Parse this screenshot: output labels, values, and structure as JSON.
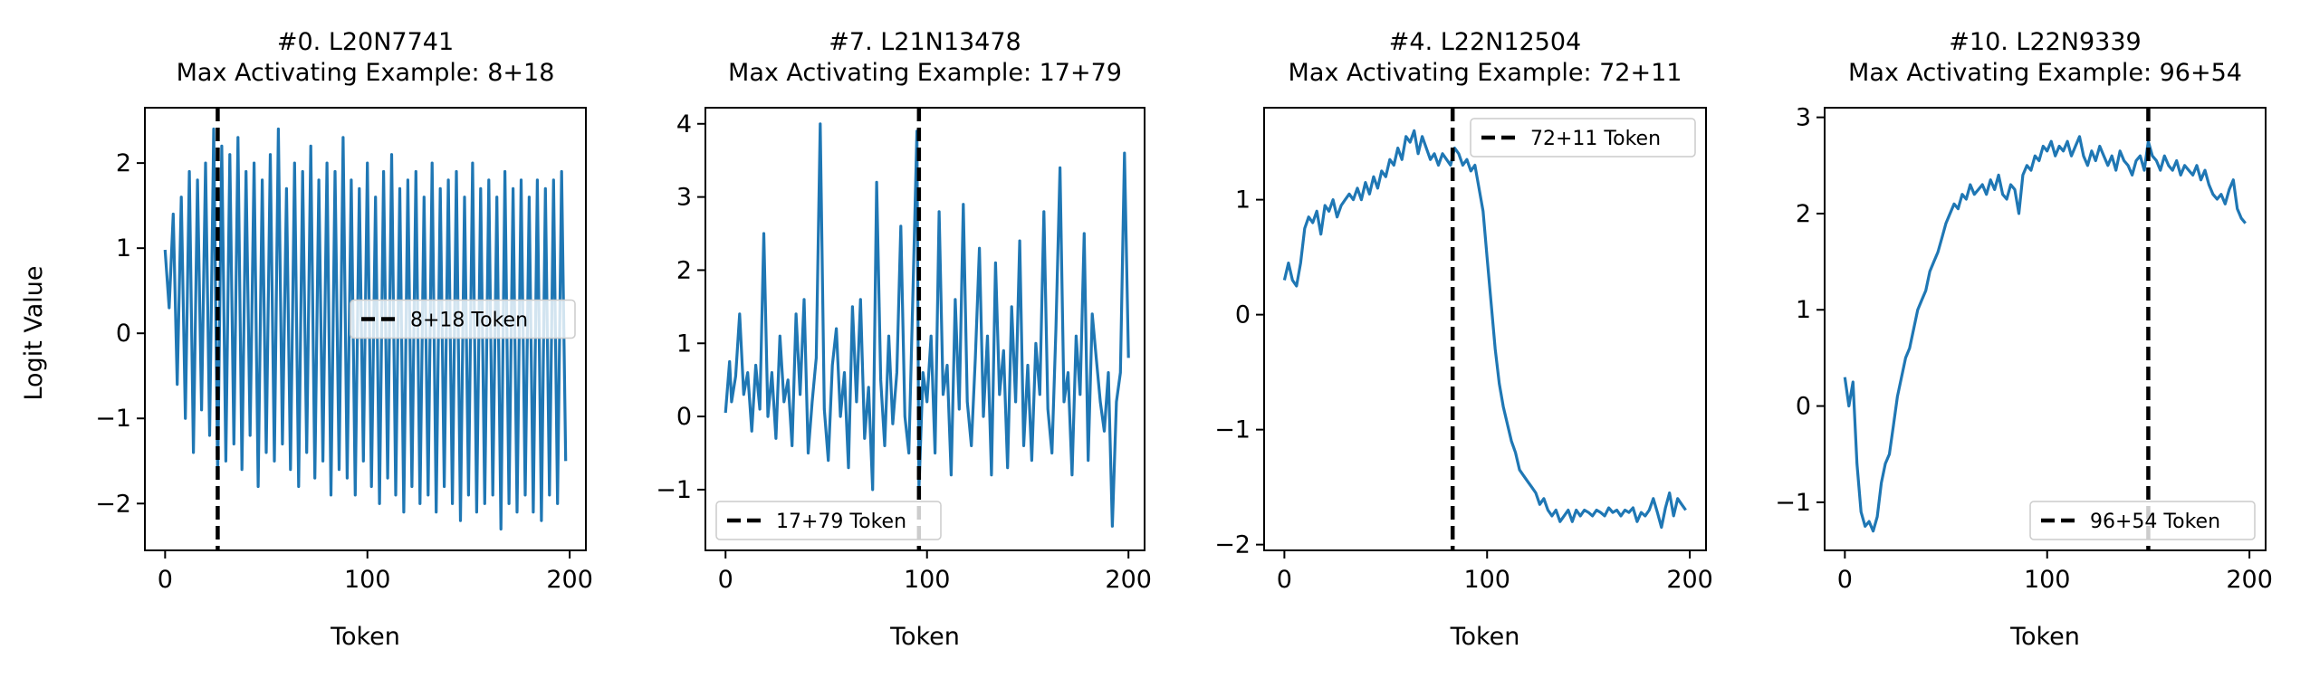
{
  "figure": {
    "ylabel": "Logit Value",
    "xlabel": "Token",
    "line_color": "#1f77b4",
    "marker_color": "#000000"
  },
  "chart_data": [
    {
      "type": "line",
      "title": "#0. L20N7741",
      "subtitle": "Max Activating Example: 8+18",
      "xlabel": "Token",
      "ylabel": "Logit Value",
      "xlim": [
        -10,
        208
      ],
      "ylim": [
        -2.55,
        2.65
      ],
      "xticks": [
        0,
        100,
        200
      ],
      "yticks": [
        -2,
        -1,
        0,
        1,
        2
      ],
      "marker_x": 26,
      "legend_label": "8+18 Token",
      "legend_loc": "center-right",
      "x": [
        0,
        2,
        4,
        6,
        8,
        10,
        12,
        14,
        16,
        18,
        20,
        22,
        24,
        26,
        28,
        30,
        32,
        34,
        36,
        38,
        40,
        42,
        44,
        46,
        48,
        50,
        52,
        54,
        56,
        58,
        60,
        62,
        64,
        66,
        68,
        70,
        72,
        74,
        76,
        78,
        80,
        82,
        84,
        86,
        88,
        90,
        92,
        94,
        96,
        98,
        100,
        102,
        104,
        106,
        108,
        110,
        112,
        114,
        116,
        118,
        120,
        122,
        124,
        126,
        128,
        130,
        132,
        134,
        136,
        138,
        140,
        142,
        144,
        146,
        148,
        150,
        152,
        154,
        156,
        158,
        160,
        162,
        164,
        166,
        168,
        170,
        172,
        174,
        176,
        178,
        180,
        182,
        184,
        186,
        188,
        190,
        192,
        194,
        196,
        198
      ],
      "y": [
        0.98,
        0.3,
        1.4,
        -0.6,
        1.6,
        -1.0,
        1.9,
        -1.4,
        1.8,
        -0.9,
        2.0,
        -1.2,
        2.4,
        -1.7,
        2.2,
        -1.5,
        2.1,
        -1.3,
        2.3,
        -1.6,
        1.9,
        -1.2,
        2.0,
        -1.8,
        1.8,
        -1.4,
        2.1,
        -1.5,
        2.4,
        -1.3,
        1.7,
        -1.6,
        2.0,
        -1.8,
        1.9,
        -1.4,
        2.2,
        -1.7,
        1.8,
        -1.5,
        2.0,
        -1.9,
        1.9,
        -1.6,
        2.3,
        -1.7,
        1.8,
        -1.9,
        1.7,
        -1.5,
        2.0,
        -1.8,
        1.6,
        -2.0,
        1.9,
        -1.7,
        2.1,
        -1.9,
        1.7,
        -2.1,
        1.8,
        -1.8,
        1.9,
        -2.0,
        1.6,
        -1.9,
        2.0,
        -2.1,
        1.7,
        -1.8,
        1.8,
        -2.0,
        1.9,
        -2.2,
        1.6,
        -1.9,
        2.0,
        -2.1,
        1.7,
        -2.0,
        1.8,
        -1.9,
        1.6,
        -2.3,
        1.9,
        -2.0,
        1.7,
        -2.1,
        1.8,
        -1.9,
        1.6,
        -2.1,
        1.8,
        -2.2,
        1.7,
        -1.9,
        1.8,
        -2.0,
        1.9,
        -1.5
      ]
    },
    {
      "type": "line",
      "title": "#7. L21N13478",
      "subtitle": "Max Activating Example: 17+79",
      "xlabel": "Token",
      "ylabel": "",
      "xlim": [
        -10,
        208
      ],
      "ylim": [
        -1.83,
        4.22
      ],
      "xticks": [
        0,
        100,
        200
      ],
      "yticks": [
        -1,
        0,
        1,
        2,
        3,
        4
      ],
      "marker_x": 96,
      "legend_label": "17+79 Token",
      "legend_loc": "bottom-left",
      "x": [
        0,
        2,
        3,
        5,
        7,
        9,
        11,
        13,
        15,
        17,
        19,
        21,
        23,
        25,
        27,
        29,
        31,
        33,
        35,
        37,
        39,
        41,
        43,
        45,
        47,
        49,
        51,
        53,
        55,
        57,
        59,
        61,
        63,
        65,
        67,
        69,
        71,
        73,
        75,
        77,
        79,
        81,
        83,
        85,
        87,
        89,
        91,
        93,
        95,
        96,
        98,
        100,
        102,
        104,
        106,
        108,
        110,
        112,
        114,
        116,
        118,
        120,
        122,
        124,
        126,
        128,
        130,
        132,
        134,
        136,
        138,
        140,
        142,
        144,
        146,
        148,
        150,
        152,
        154,
        156,
        158,
        160,
        162,
        164,
        166,
        168,
        170,
        172,
        174,
        176,
        178,
        180,
        182,
        184,
        186,
        188,
        190,
        192,
        194,
        196,
        198,
        200
      ],
      "y": [
        0.05,
        0.75,
        0.2,
        0.55,
        1.4,
        0.3,
        0.6,
        -0.2,
        0.7,
        0.1,
        2.5,
        0.0,
        0.6,
        -0.3,
        1.1,
        0.2,
        0.5,
        -0.4,
        1.4,
        0.3,
        1.6,
        -0.5,
        0.2,
        0.8,
        4.0,
        0.1,
        -0.6,
        0.7,
        1.2,
        0.0,
        0.6,
        -0.7,
        1.5,
        0.2,
        1.6,
        -0.3,
        0.4,
        -1.0,
        3.2,
        0.5,
        -0.4,
        1.1,
        -0.1,
        0.6,
        2.6,
        0.0,
        -0.5,
        1.7,
        3.9,
        -1.0,
        0.6,
        0.2,
        1.1,
        -0.5,
        2.8,
        0.3,
        0.7,
        -0.8,
        1.6,
        0.1,
        2.9,
        0.2,
        -0.4,
        0.8,
        2.3,
        0.0,
        1.1,
        -0.8,
        2.1,
        0.3,
        0.9,
        -0.7,
        1.5,
        0.2,
        2.4,
        -0.4,
        0.7,
        -0.6,
        1.0,
        0.3,
        2.8,
        0.1,
        -0.5,
        1.2,
        3.4,
        0.2,
        0.6,
        -0.8,
        1.1,
        0.3,
        2.5,
        -0.6,
        1.4,
        0.8,
        0.2,
        -0.2,
        0.6,
        -1.5,
        0.2,
        0.6,
        3.6,
        0.8
      ]
    },
    {
      "type": "line",
      "title": "#4. L22N12504",
      "subtitle": "Max Activating Example: 72+11",
      "xlabel": "Token",
      "ylabel": "",
      "xlim": [
        -10,
        208
      ],
      "ylim": [
        -2.05,
        1.8
      ],
      "xticks": [
        0,
        100,
        200
      ],
      "yticks": [
        -2,
        -1,
        0,
        1
      ],
      "marker_x": 83,
      "legend_label": "72+11 Token",
      "legend_loc": "top-right",
      "x": [
        0,
        2,
        4,
        6,
        8,
        10,
        12,
        14,
        16,
        18,
        20,
        22,
        24,
        26,
        28,
        30,
        32,
        34,
        36,
        38,
        40,
        42,
        44,
        46,
        48,
        50,
        52,
        54,
        56,
        58,
        60,
        62,
        64,
        66,
        68,
        70,
        72,
        74,
        76,
        78,
        80,
        82,
        84,
        86,
        88,
        90,
        92,
        94,
        96,
        98,
        100,
        102,
        104,
        106,
        108,
        110,
        112,
        114,
        116,
        118,
        120,
        122,
        124,
        126,
        128,
        130,
        132,
        134,
        136,
        138,
        140,
        142,
        144,
        146,
        148,
        150,
        152,
        154,
        156,
        158,
        160,
        162,
        164,
        166,
        168,
        170,
        172,
        174,
        176,
        178,
        180,
        182,
        184,
        186,
        188,
        190,
        192,
        194,
        196,
        198
      ],
      "y": [
        0.3,
        0.45,
        0.3,
        0.25,
        0.45,
        0.75,
        0.85,
        0.8,
        0.9,
        0.7,
        0.95,
        0.9,
        1.0,
        0.85,
        0.95,
        1.0,
        1.05,
        1.0,
        1.1,
        1.0,
        1.15,
        1.05,
        1.2,
        1.1,
        1.25,
        1.2,
        1.35,
        1.3,
        1.45,
        1.35,
        1.55,
        1.5,
        1.6,
        1.4,
        1.55,
        1.45,
        1.35,
        1.4,
        1.3,
        1.4,
        1.35,
        1.3,
        1.45,
        1.4,
        1.3,
        1.35,
        1.25,
        1.3,
        1.1,
        0.9,
        0.5,
        0.1,
        -0.3,
        -0.6,
        -0.8,
        -0.95,
        -1.1,
        -1.2,
        -1.35,
        -1.4,
        -1.45,
        -1.5,
        -1.55,
        -1.65,
        -1.6,
        -1.7,
        -1.75,
        -1.7,
        -1.8,
        -1.75,
        -1.7,
        -1.8,
        -1.7,
        -1.75,
        -1.7,
        -1.72,
        -1.75,
        -1.7,
        -1.72,
        -1.75,
        -1.68,
        -1.72,
        -1.7,
        -1.75,
        -1.7,
        -1.72,
        -1.68,
        -1.8,
        -1.72,
        -1.75,
        -1.7,
        -1.6,
        -1.72,
        -1.85,
        -1.68,
        -1.55,
        -1.75,
        -1.6,
        -1.65,
        -1.7
      ]
    },
    {
      "type": "line",
      "title": "#10. L22N9339",
      "subtitle": "Max Activating Example: 96+54",
      "xlabel": "Token",
      "ylabel": "",
      "xlim": [
        -10,
        208
      ],
      "ylim": [
        -1.5,
        3.1
      ],
      "xticks": [
        0,
        100,
        200
      ],
      "yticks": [
        -1,
        0,
        1,
        2,
        3
      ],
      "marker_x": 150,
      "legend_label": "96+54 Token",
      "legend_loc": "bottom-right",
      "x": [
        0,
        2,
        4,
        6,
        8,
        10,
        12,
        14,
        16,
        18,
        20,
        22,
        24,
        26,
        28,
        30,
        32,
        34,
        36,
        38,
        40,
        42,
        44,
        46,
        48,
        50,
        52,
        54,
        56,
        58,
        60,
        62,
        64,
        66,
        68,
        70,
        72,
        74,
        76,
        78,
        80,
        82,
        84,
        86,
        88,
        90,
        92,
        94,
        96,
        98,
        100,
        102,
        104,
        106,
        108,
        110,
        112,
        114,
        116,
        118,
        120,
        122,
        124,
        126,
        128,
        130,
        132,
        134,
        136,
        138,
        140,
        142,
        144,
        146,
        148,
        150,
        152,
        154,
        156,
        158,
        160,
        162,
        164,
        166,
        168,
        170,
        172,
        174,
        176,
        178,
        180,
        182,
        184,
        186,
        188,
        190,
        192,
        194,
        196,
        198
      ],
      "y": [
        0.3,
        0.0,
        0.25,
        -0.6,
        -1.1,
        -1.25,
        -1.2,
        -1.3,
        -1.15,
        -0.8,
        -0.6,
        -0.5,
        -0.2,
        0.1,
        0.3,
        0.5,
        0.6,
        0.8,
        1.0,
        1.1,
        1.2,
        1.4,
        1.5,
        1.6,
        1.75,
        1.9,
        2.0,
        2.1,
        2.05,
        2.2,
        2.15,
        2.3,
        2.2,
        2.25,
        2.3,
        2.2,
        2.35,
        2.25,
        2.4,
        2.2,
        2.15,
        2.3,
        2.25,
        2.0,
        2.4,
        2.5,
        2.45,
        2.6,
        2.55,
        2.7,
        2.65,
        2.75,
        2.6,
        2.7,
        2.65,
        2.75,
        2.6,
        2.7,
        2.8,
        2.6,
        2.5,
        2.65,
        2.55,
        2.7,
        2.6,
        2.5,
        2.6,
        2.45,
        2.65,
        2.55,
        2.5,
        2.4,
        2.55,
        2.6,
        2.45,
        2.75,
        2.6,
        2.55,
        2.45,
        2.6,
        2.5,
        2.45,
        2.55,
        2.4,
        2.5,
        2.45,
        2.4,
        2.5,
        2.35,
        2.45,
        2.3,
        2.2,
        2.15,
        2.2,
        2.1,
        2.25,
        2.35,
        2.05,
        1.95,
        1.9
      ]
    }
  ]
}
